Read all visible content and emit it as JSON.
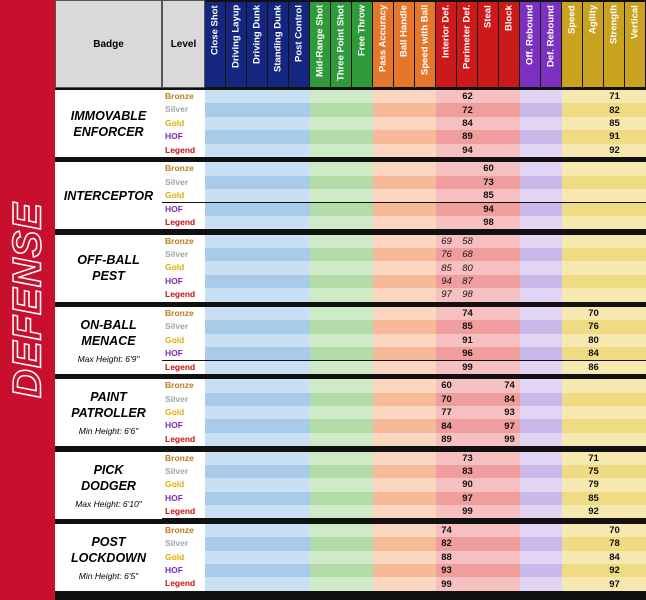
{
  "side_title": "DEFENSE",
  "header": {
    "badge": "Badge",
    "level": "Level"
  },
  "groups": [
    {
      "color": "#15267e",
      "light": "#c9e0f4",
      "dark": "#a9cbea",
      "columns": [
        "Close Shot",
        "Driving Layup",
        "Driving Dunk",
        "Standing Dunk",
        "Post Control"
      ]
    },
    {
      "color": "#2e9a3a",
      "light": "#cfeac6",
      "dark": "#b3dca8",
      "columns": [
        "Mid-Range Shot",
        "Three Point Shot",
        "Free Throw"
      ]
    },
    {
      "color": "#e5772c",
      "light": "#fbd6c0",
      "dark": "#f6ba98",
      "columns": [
        "Pass Accuracy",
        "Ball Handle",
        "Speed with Ball"
      ]
    },
    {
      "color": "#cc1a1a",
      "light": "#f6c0c0",
      "dark": "#ef9d9d",
      "columns": [
        "Interior Def.",
        "Perimeter Def.",
        "Steal",
        "Block"
      ]
    },
    {
      "color": "#7b30bf",
      "light": "#e2d5f3",
      "dark": "#cbb8ea",
      "columns": [
        "Off. Rebound",
        "Def. Rebound"
      ]
    },
    {
      "color": "#c9a21f",
      "light": "#f6e8ae",
      "dark": "#eedb84",
      "columns": [
        "Speed",
        "Agility",
        "Strength",
        "Vertical"
      ]
    }
  ],
  "levels": [
    {
      "name": "Bronze",
      "color": "#bf7a1c"
    },
    {
      "name": "Silver",
      "color": "#a3a3a3"
    },
    {
      "name": "Gold",
      "color": "#e0ad00"
    },
    {
      "name": "HOF",
      "color": "#7a2ab0"
    },
    {
      "name": "Legend",
      "color": "#c41010"
    }
  ],
  "badges": [
    {
      "name": "IMMOVABLE ENFORCER",
      "rows": [
        [
          null,
          null,
          null,
          null,
          null,
          null,
          null,
          null,
          null,
          null,
          null,
          null,
          62,
          null,
          null,
          null,
          null,
          null,
          null,
          71,
          null
        ],
        [
          null,
          null,
          null,
          null,
          null,
          null,
          null,
          null,
          null,
          null,
          null,
          null,
          72,
          null,
          null,
          null,
          null,
          null,
          null,
          82,
          null
        ],
        [
          null,
          null,
          null,
          null,
          null,
          null,
          null,
          null,
          null,
          null,
          null,
          null,
          84,
          null,
          null,
          null,
          null,
          null,
          null,
          85,
          null
        ],
        [
          null,
          null,
          null,
          null,
          null,
          null,
          null,
          null,
          null,
          null,
          null,
          null,
          89,
          null,
          null,
          null,
          null,
          null,
          null,
          91,
          null
        ],
        [
          null,
          null,
          null,
          null,
          null,
          null,
          null,
          null,
          null,
          null,
          null,
          null,
          94,
          null,
          null,
          null,
          null,
          null,
          null,
          92,
          null
        ]
      ]
    },
    {
      "name": "INTERCEPTOR",
      "rows": [
        [
          null,
          null,
          null,
          null,
          null,
          null,
          null,
          null,
          null,
          null,
          null,
          null,
          null,
          60,
          null,
          null,
          null,
          null,
          null,
          null,
          null
        ],
        [
          null,
          null,
          null,
          null,
          null,
          null,
          null,
          null,
          null,
          null,
          null,
          null,
          null,
          73,
          null,
          null,
          null,
          null,
          null,
          null,
          null
        ],
        [
          null,
          null,
          null,
          null,
          null,
          null,
          null,
          null,
          null,
          null,
          null,
          null,
          null,
          85,
          null,
          null,
          null,
          null,
          null,
          null,
          null
        ],
        [
          null,
          null,
          null,
          null,
          null,
          null,
          null,
          null,
          null,
          null,
          null,
          null,
          null,
          94,
          null,
          null,
          null,
          null,
          null,
          null,
          null
        ],
        [
          null,
          null,
          null,
          null,
          null,
          null,
          null,
          null,
          null,
          null,
          null,
          null,
          null,
          98,
          null,
          null,
          null,
          null,
          null,
          null,
          null
        ]
      ]
    },
    {
      "name": "OFF-BALL PEST",
      "italic": true,
      "rows": [
        [
          null,
          null,
          null,
          null,
          null,
          null,
          null,
          null,
          null,
          null,
          null,
          69,
          58,
          null,
          null,
          null,
          null,
          null,
          null,
          null,
          null
        ],
        [
          null,
          null,
          null,
          null,
          null,
          null,
          null,
          null,
          null,
          null,
          null,
          76,
          68,
          null,
          null,
          null,
          null,
          null,
          null,
          null,
          null
        ],
        [
          null,
          null,
          null,
          null,
          null,
          null,
          null,
          null,
          null,
          null,
          null,
          85,
          80,
          null,
          null,
          null,
          null,
          null,
          null,
          null,
          null
        ],
        [
          null,
          null,
          null,
          null,
          null,
          null,
          null,
          null,
          null,
          null,
          null,
          94,
          87,
          null,
          null,
          null,
          null,
          null,
          null,
          null,
          null
        ],
        [
          null,
          null,
          null,
          null,
          null,
          null,
          null,
          null,
          null,
          null,
          null,
          97,
          98,
          null,
          null,
          null,
          null,
          null,
          null,
          null,
          null
        ]
      ]
    },
    {
      "name": "ON-BALL MENACE",
      "note": "Max Height: 6'9\"",
      "rows": [
        [
          null,
          null,
          null,
          null,
          null,
          null,
          null,
          null,
          null,
          null,
          null,
          null,
          74,
          null,
          null,
          null,
          null,
          null,
          70,
          null,
          null
        ],
        [
          null,
          null,
          null,
          null,
          null,
          null,
          null,
          null,
          null,
          null,
          null,
          null,
          85,
          null,
          null,
          null,
          null,
          null,
          76,
          null,
          null
        ],
        [
          null,
          null,
          null,
          null,
          null,
          null,
          null,
          null,
          null,
          null,
          null,
          null,
          91,
          null,
          null,
          null,
          null,
          null,
          80,
          null,
          null
        ],
        [
          null,
          null,
          null,
          null,
          null,
          null,
          null,
          null,
          null,
          null,
          null,
          null,
          96,
          null,
          null,
          null,
          null,
          null,
          84,
          null,
          null
        ],
        [
          null,
          null,
          null,
          null,
          null,
          null,
          null,
          null,
          null,
          null,
          null,
          null,
          99,
          null,
          null,
          null,
          null,
          null,
          86,
          null,
          null
        ]
      ]
    },
    {
      "name": "PAINT PATROLLER",
      "note": "Min Height: 6'6\"",
      "rows": [
        [
          null,
          null,
          null,
          null,
          null,
          null,
          null,
          null,
          null,
          null,
          null,
          60,
          null,
          null,
          74,
          null,
          null,
          null,
          null,
          null,
          null
        ],
        [
          null,
          null,
          null,
          null,
          null,
          null,
          null,
          null,
          null,
          null,
          null,
          70,
          null,
          null,
          84,
          null,
          null,
          null,
          null,
          null,
          null
        ],
        [
          null,
          null,
          null,
          null,
          null,
          null,
          null,
          null,
          null,
          null,
          null,
          77,
          null,
          null,
          93,
          null,
          null,
          null,
          null,
          null,
          null
        ],
        [
          null,
          null,
          null,
          null,
          null,
          null,
          null,
          null,
          null,
          null,
          null,
          84,
          null,
          null,
          97,
          null,
          null,
          null,
          null,
          null,
          null
        ],
        [
          null,
          null,
          null,
          null,
          null,
          null,
          null,
          null,
          null,
          null,
          null,
          89,
          null,
          null,
          99,
          null,
          null,
          null,
          null,
          null,
          null
        ]
      ]
    },
    {
      "name": "PICK DODGER",
      "note": "Max Height: 6'10\"",
      "rows": [
        [
          null,
          null,
          null,
          null,
          null,
          null,
          null,
          null,
          null,
          null,
          null,
          null,
          73,
          null,
          null,
          null,
          null,
          null,
          71,
          null,
          null
        ],
        [
          null,
          null,
          null,
          null,
          null,
          null,
          null,
          null,
          null,
          null,
          null,
          null,
          83,
          null,
          null,
          null,
          null,
          null,
          75,
          null,
          null
        ],
        [
          null,
          null,
          null,
          null,
          null,
          null,
          null,
          null,
          null,
          null,
          null,
          null,
          90,
          null,
          null,
          null,
          null,
          null,
          79,
          null,
          null
        ],
        [
          null,
          null,
          null,
          null,
          null,
          null,
          null,
          null,
          null,
          null,
          null,
          null,
          97,
          null,
          null,
          null,
          null,
          null,
          85,
          null,
          null
        ],
        [
          null,
          null,
          null,
          null,
          null,
          null,
          null,
          null,
          null,
          null,
          null,
          null,
          99,
          null,
          null,
          null,
          null,
          null,
          92,
          null,
          null
        ]
      ]
    },
    {
      "name": "POST LOCKDOWN",
      "note": "Min Height: 6'5\"",
      "rows": [
        [
          null,
          null,
          null,
          null,
          null,
          null,
          null,
          null,
          null,
          null,
          null,
          74,
          null,
          null,
          null,
          null,
          null,
          null,
          null,
          70,
          null
        ],
        [
          null,
          null,
          null,
          null,
          null,
          null,
          null,
          null,
          null,
          null,
          null,
          82,
          null,
          null,
          null,
          null,
          null,
          null,
          null,
          78,
          null
        ],
        [
          null,
          null,
          null,
          null,
          null,
          null,
          null,
          null,
          null,
          null,
          null,
          88,
          null,
          null,
          null,
          null,
          null,
          null,
          null,
          84,
          null
        ],
        [
          null,
          null,
          null,
          null,
          null,
          null,
          null,
          null,
          null,
          null,
          null,
          93,
          null,
          null,
          null,
          null,
          null,
          null,
          null,
          92,
          null
        ],
        [
          null,
          null,
          null,
          null,
          null,
          null,
          null,
          null,
          null,
          null,
          null,
          99,
          null,
          null,
          null,
          null,
          null,
          null,
          null,
          97,
          null
        ]
      ]
    }
  ]
}
